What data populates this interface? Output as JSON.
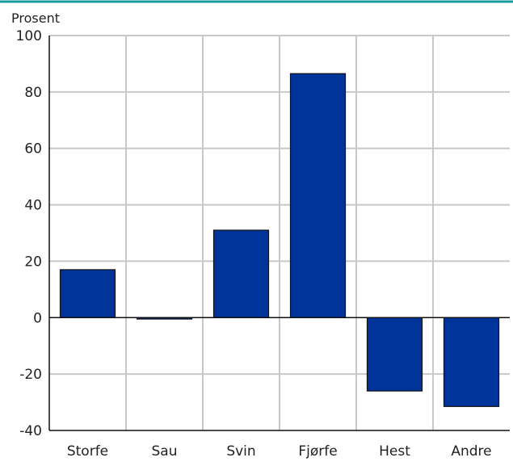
{
  "chart_data": {
    "type": "bar",
    "unit_label": "Prosent",
    "categories": [
      "Storfe",
      "Sau",
      "Svin",
      "Fjørfe",
      "Hest",
      "Andre"
    ],
    "values": [
      17,
      -0.5,
      31,
      86.5,
      -26,
      -31.5
    ],
    "ylim": [
      -40,
      100
    ],
    "yticks": [
      "100",
      "80",
      "60",
      "40",
      "20",
      "0",
      "-20",
      "-40"
    ],
    "grid": true,
    "colors": {
      "bar": "#00349a",
      "bar_edge": "#111111",
      "grid": "#c8c8c8",
      "top_rule": "#1a9a9a"
    }
  }
}
